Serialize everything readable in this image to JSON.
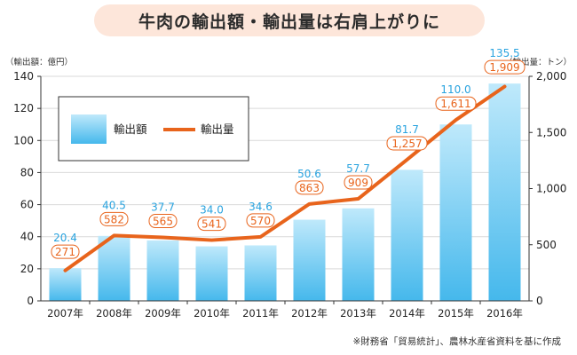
{
  "title": "牛肉の輸出額・輸出量は右肩上がりに",
  "note": "※財務省「貿易統計」、農林水産省資料を基に作成",
  "colors": {
    "bar_top": "#bfe9fb",
    "bar_bottom": "#45b8ec",
    "line": "#e8641c",
    "value_text": "#29a3df",
    "volume_text": "#e8641c",
    "axis": "#333333",
    "grid": "#d9d9d9"
  },
  "chart_data": {
    "type": "bar+line",
    "categories": [
      "2007年",
      "2008年",
      "2009年",
      "2010年",
      "2011年",
      "2012年",
      "2013年",
      "2014年",
      "2015年",
      "2016年"
    ],
    "series": [
      {
        "name": "輸出額",
        "type": "bar",
        "axis": "left",
        "values": [
          20.4,
          40.5,
          37.7,
          34.0,
          34.6,
          50.6,
          57.7,
          81.7,
          110.0,
          135.5
        ],
        "labels": [
          "20.4",
          "40.5",
          "37.7",
          "34.0",
          "34.6",
          "50.6",
          "57.7",
          "81.7",
          "110.0",
          "135.5"
        ]
      },
      {
        "name": "輸出量",
        "type": "line",
        "axis": "right",
        "values": [
          271,
          582,
          565,
          541,
          570,
          863,
          909,
          1257,
          1611,
          1909
        ],
        "labels": [
          "271",
          "582",
          "565",
          "541",
          "570",
          "863",
          "909",
          "1,257",
          "1,611",
          "1,909"
        ]
      }
    ],
    "left_axis": {
      "label": "（輸出額：億円）",
      "ylim": [
        0,
        140
      ],
      "ticks": [
        0,
        20,
        40,
        60,
        80,
        100,
        120,
        140
      ],
      "tick_labels": [
        "0",
        "20",
        "40",
        "60",
        "80",
        "100",
        "120",
        "140"
      ]
    },
    "right_axis": {
      "label": "（輸出量：トン）",
      "ylim": [
        0,
        2000
      ],
      "ticks": [
        0,
        500,
        1000,
        1500,
        2000
      ],
      "tick_labels": [
        "0",
        "500",
        "1,000",
        "1,500",
        "2,000"
      ]
    },
    "grid": "horizontal",
    "legend": {
      "placement": "top-left",
      "entries": [
        "輸出額",
        "輸出量"
      ]
    }
  }
}
